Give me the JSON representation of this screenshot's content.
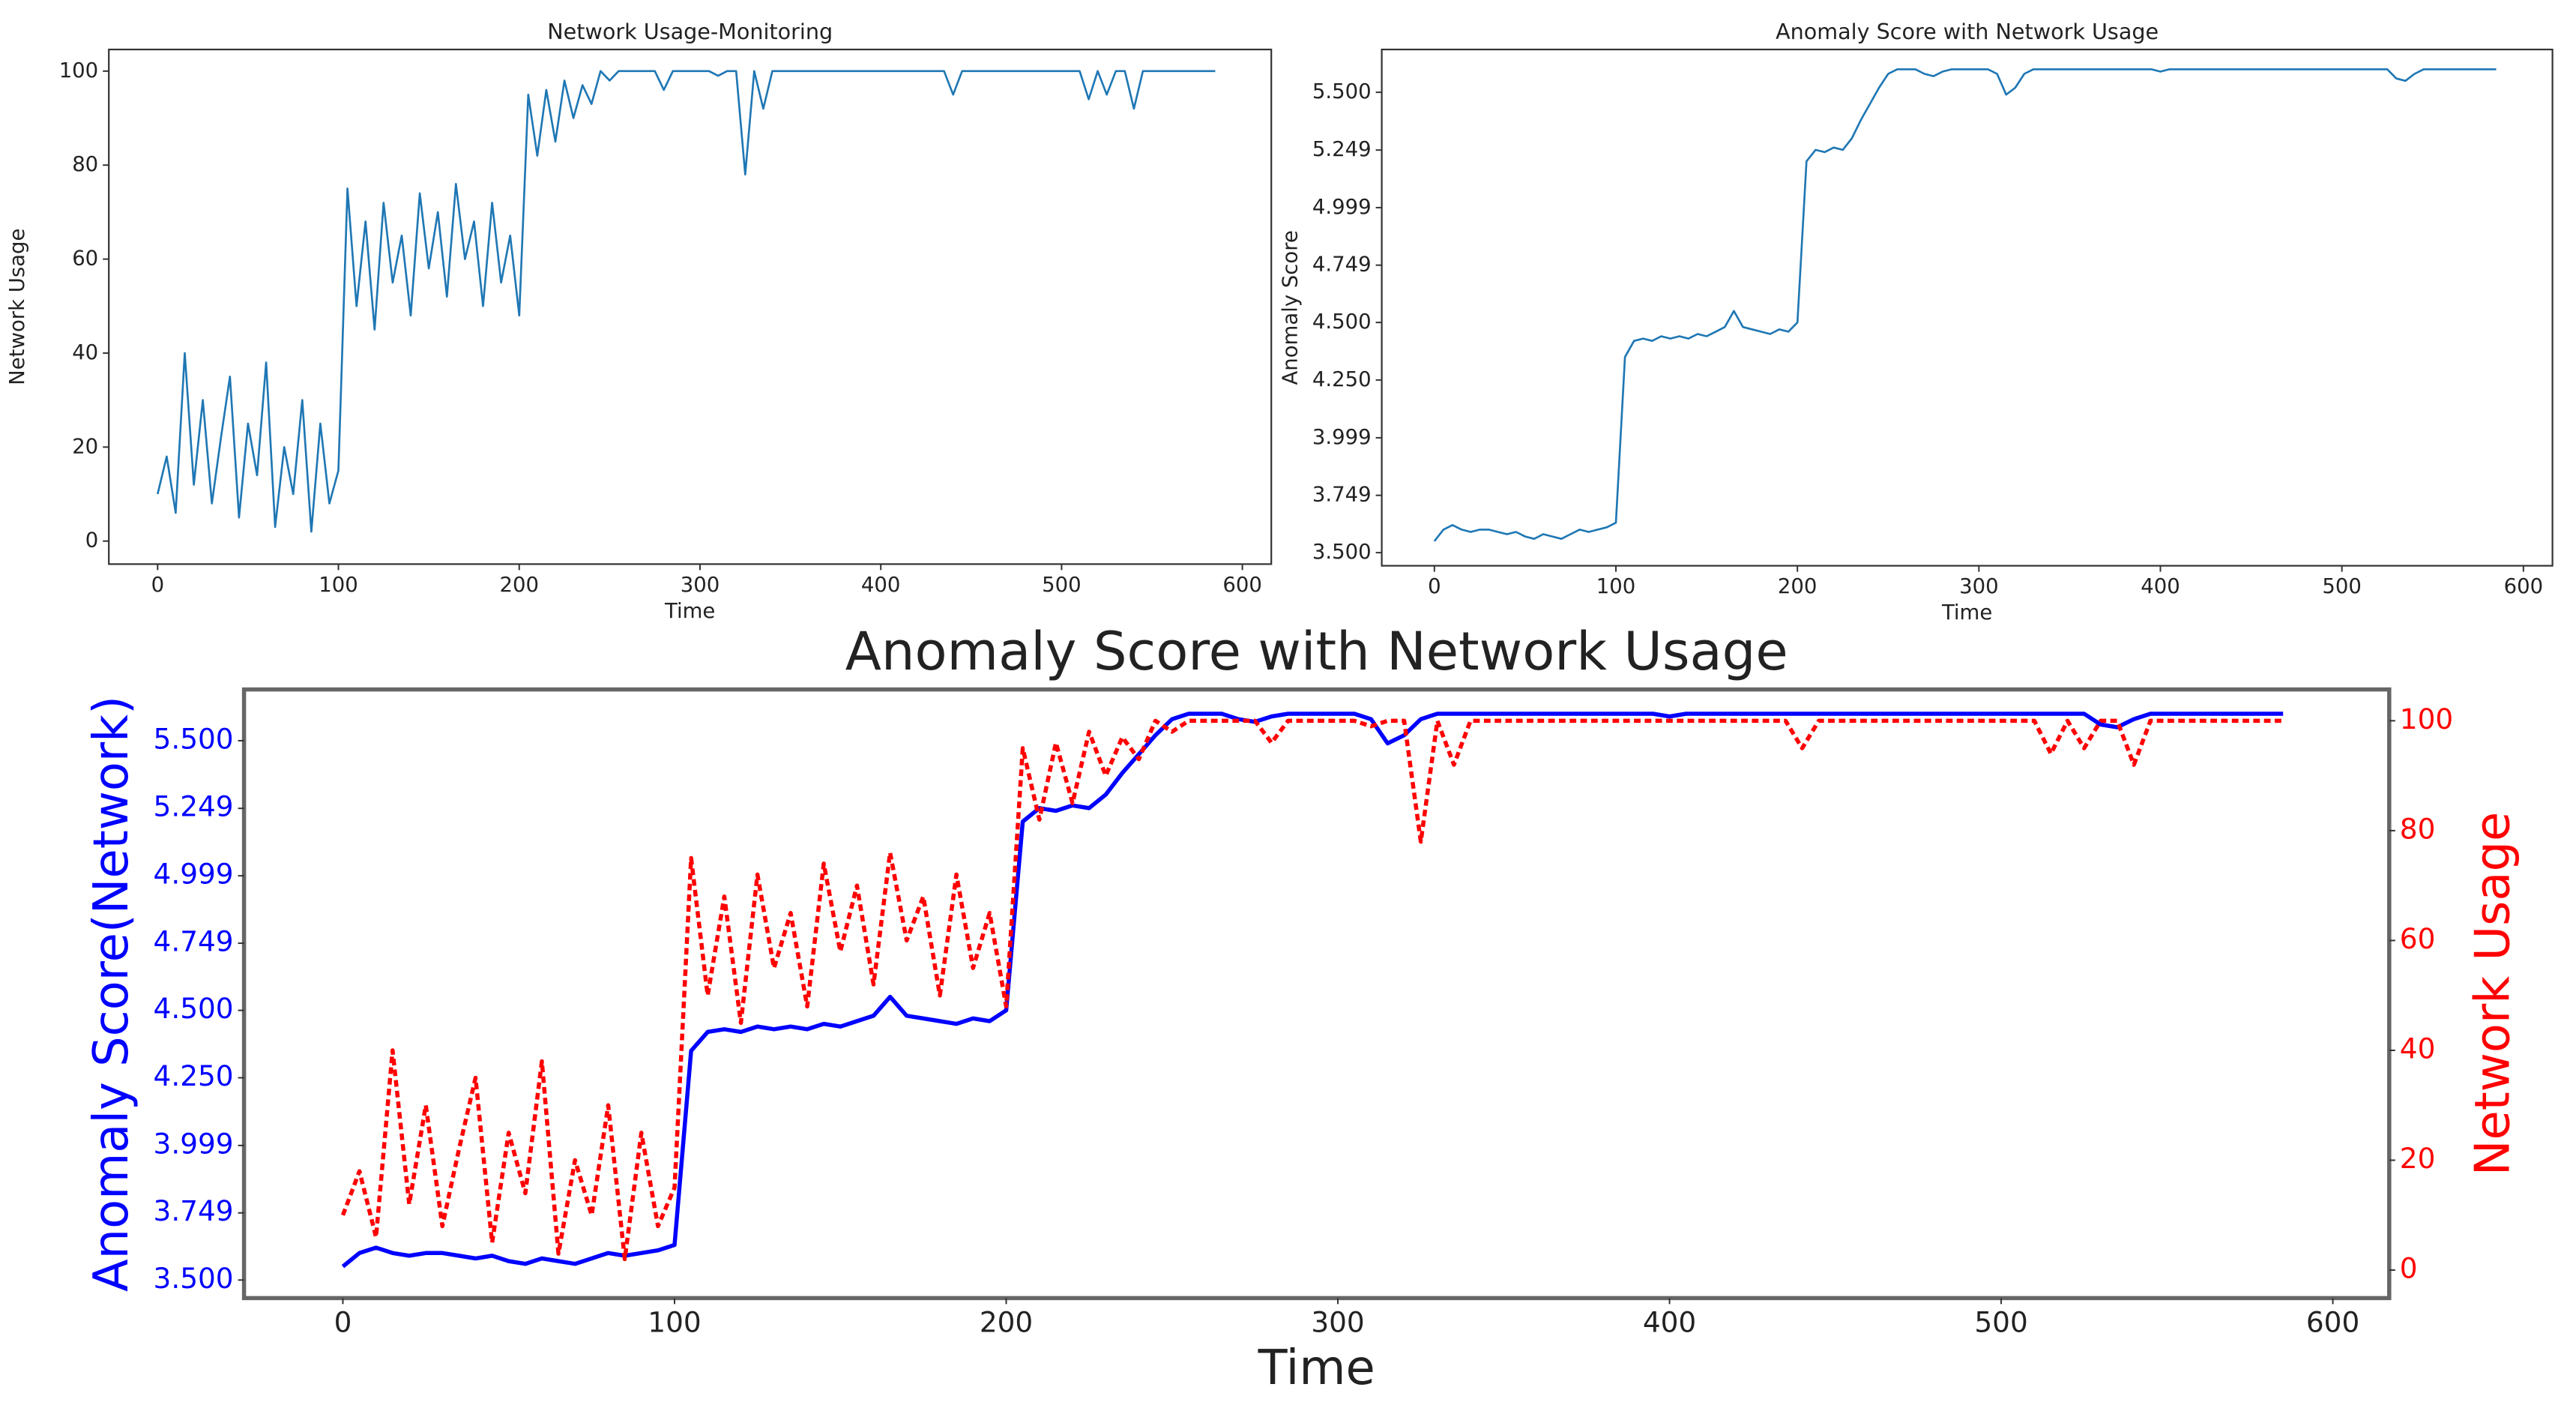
{
  "chart_data": [
    {
      "type": "line",
      "title": "Network Usage-Monitoring",
      "xlabel": "Time",
      "ylabel": "Network Usage",
      "xlim": [
        -27,
        616
      ],
      "ylim": [
        -4.9,
        104.6
      ],
      "xticks": [
        0,
        100,
        200,
        300,
        400,
        500,
        600
      ],
      "yticks": [
        0,
        20,
        40,
        60,
        80,
        100
      ],
      "x": [
        0,
        5,
        10,
        15,
        20,
        25,
        30,
        35,
        40,
        45,
        50,
        55,
        60,
        65,
        70,
        75,
        80,
        85,
        90,
        95,
        100,
        105,
        110,
        115,
        120,
        125,
        130,
        135,
        140,
        145,
        150,
        155,
        160,
        165,
        170,
        175,
        180,
        185,
        190,
        195,
        200,
        205,
        210,
        215,
        220,
        225,
        230,
        235,
        240,
        245,
        250,
        255,
        260,
        265,
        270,
        275,
        280,
        285,
        290,
        295,
        300,
        305,
        310,
        315,
        320,
        325,
        330,
        335,
        340,
        345,
        350,
        355,
        360,
        365,
        370,
        375,
        380,
        385,
        390,
        395,
        400,
        405,
        410,
        415,
        420,
        425,
        430,
        435,
        440,
        445,
        450,
        455,
        460,
        465,
        470,
        475,
        480,
        485,
        490,
        495,
        500,
        505,
        510,
        515,
        520,
        525,
        530,
        535,
        540,
        545,
        550,
        555,
        560,
        565,
        570,
        575,
        580,
        585
      ],
      "series": [
        {
          "color": "#1f77b4",
          "values": [
            10,
            18,
            6,
            40,
            12,
            30,
            8,
            22,
            35,
            5,
            25,
            14,
            38,
            3,
            20,
            10,
            30,
            2,
            25,
            8,
            15,
            75,
            50,
            68,
            45,
            72,
            55,
            65,
            48,
            74,
            58,
            70,
            52,
            76,
            60,
            68,
            50,
            72,
            55,
            65,
            48,
            95,
            82,
            96,
            85,
            98,
            90,
            97,
            93,
            100,
            98,
            100,
            100,
            100,
            100,
            100,
            96,
            100,
            100,
            100,
            100,
            100,
            99,
            100,
            100,
            78,
            100,
            92,
            100,
            100,
            100,
            100,
            100,
            100,
            100,
            100,
            100,
            100,
            100,
            100,
            100,
            100,
            100,
            100,
            100,
            100,
            100,
            100,
            95,
            100,
            100,
            100,
            100,
            100,
            100,
            100,
            100,
            100,
            100,
            100,
            100,
            100,
            100,
            94,
            100,
            95,
            100,
            100,
            92,
            100,
            100,
            100,
            100,
            100,
            100,
            100,
            100,
            100
          ]
        }
      ]
    },
    {
      "type": "line",
      "title": "Anomaly Score with Network Usage",
      "xlabel": "Time",
      "ylabel": "Anomaly Score",
      "xlim": [
        -29,
        616
      ],
      "ylim": [
        3.443,
        5.686
      ],
      "xticks": [
        0,
        100,
        200,
        300,
        400,
        500,
        600
      ],
      "yticks": [
        {
          "value": 3.5,
          "label": "3.500"
        },
        {
          "value": 3.749,
          "label": "3.749"
        },
        {
          "value": 3.999,
          "label": "3.999"
        },
        {
          "value": 4.25,
          "label": "4.250"
        },
        {
          "value": 4.5,
          "label": "4.500"
        },
        {
          "value": 4.749,
          "label": "4.749"
        },
        {
          "value": 4.999,
          "label": "4.999"
        },
        {
          "value": 5.249,
          "label": "5.249"
        },
        {
          "value": 5.5,
          "label": "5.500"
        }
      ],
      "x": [
        0,
        5,
        10,
        15,
        20,
        25,
        30,
        35,
        40,
        45,
        50,
        55,
        60,
        65,
        70,
        75,
        80,
        85,
        90,
        95,
        100,
        105,
        110,
        115,
        120,
        125,
        130,
        135,
        140,
        145,
        150,
        155,
        160,
        165,
        170,
        175,
        180,
        185,
        190,
        195,
        200,
        205,
        210,
        215,
        220,
        225,
        230,
        235,
        240,
        245,
        250,
        255,
        260,
        265,
        270,
        275,
        280,
        285,
        290,
        295,
        300,
        305,
        310,
        315,
        320,
        325,
        330,
        335,
        340,
        345,
        350,
        355,
        360,
        365,
        370,
        375,
        380,
        385,
        390,
        395,
        400,
        405,
        410,
        415,
        420,
        425,
        430,
        435,
        440,
        445,
        450,
        455,
        460,
        465,
        470,
        475,
        480,
        485,
        490,
        495,
        500,
        505,
        510,
        515,
        520,
        525,
        530,
        535,
        540,
        545,
        550,
        555,
        560,
        565,
        570,
        575,
        580,
        585
      ],
      "series": [
        {
          "color": "#1f77b4",
          "values": [
            3.55,
            3.6,
            3.62,
            3.6,
            3.59,
            3.6,
            3.6,
            3.59,
            3.58,
            3.59,
            3.57,
            3.56,
            3.58,
            3.57,
            3.56,
            3.58,
            3.6,
            3.59,
            3.6,
            3.61,
            3.63,
            4.35,
            4.42,
            4.43,
            4.42,
            4.44,
            4.43,
            4.44,
            4.43,
            4.45,
            4.44,
            4.46,
            4.48,
            4.55,
            4.48,
            4.47,
            4.46,
            4.45,
            4.47,
            4.46,
            4.5,
            5.2,
            5.25,
            5.24,
            5.26,
            5.25,
            5.3,
            5.38,
            5.45,
            5.52,
            5.58,
            5.6,
            5.6,
            5.6,
            5.58,
            5.57,
            5.59,
            5.6,
            5.6,
            5.6,
            5.6,
            5.6,
            5.58,
            5.49,
            5.52,
            5.58,
            5.6,
            5.6,
            5.6,
            5.6,
            5.6,
            5.6,
            5.6,
            5.6,
            5.6,
            5.6,
            5.6,
            5.6,
            5.6,
            5.6,
            5.59,
            5.6,
            5.6,
            5.6,
            5.6,
            5.6,
            5.6,
            5.6,
            5.6,
            5.6,
            5.6,
            5.6,
            5.6,
            5.6,
            5.6,
            5.6,
            5.6,
            5.6,
            5.6,
            5.6,
            5.6,
            5.6,
            5.6,
            5.6,
            5.6,
            5.6,
            5.56,
            5.55,
            5.58,
            5.6,
            5.6,
            5.6,
            5.6,
            5.6,
            5.6,
            5.6,
            5.6,
            5.6
          ]
        }
      ]
    },
    {
      "type": "line",
      "title": "Anomaly Score with Network Usage",
      "xlabel": "Time",
      "ylabel": "Anomaly Score(Network)",
      "y2label": "Network Usage",
      "xlim": [
        -29.8,
        617
      ],
      "ylim": [
        3.433,
        5.69
      ],
      "y2lim": [
        -5.1,
        105.7
      ],
      "xticks": [
        0,
        100,
        200,
        300,
        400,
        500,
        600
      ],
      "yticks": [
        {
          "value": 3.5,
          "label": "3.500"
        },
        {
          "value": 3.749,
          "label": "3.749"
        },
        {
          "value": 3.999,
          "label": "3.999"
        },
        {
          "value": 4.25,
          "label": "4.250"
        },
        {
          "value": 4.5,
          "label": "4.500"
        },
        {
          "value": 4.749,
          "label": "4.749"
        },
        {
          "value": 4.999,
          "label": "4.999"
        },
        {
          "value": 5.249,
          "label": "5.249"
        },
        {
          "value": 5.5,
          "label": "5.500"
        }
      ],
      "y2ticks": [
        0,
        20,
        40,
        60,
        80,
        100
      ],
      "x": [
        0,
        5,
        10,
        15,
        20,
        25,
        30,
        35,
        40,
        45,
        50,
        55,
        60,
        65,
        70,
        75,
        80,
        85,
        90,
        95,
        100,
        105,
        110,
        115,
        120,
        125,
        130,
        135,
        140,
        145,
        150,
        155,
        160,
        165,
        170,
        175,
        180,
        185,
        190,
        195,
        200,
        205,
        210,
        215,
        220,
        225,
        230,
        235,
        240,
        245,
        250,
        255,
        260,
        265,
        270,
        275,
        280,
        285,
        290,
        295,
        300,
        305,
        310,
        315,
        320,
        325,
        330,
        335,
        340,
        345,
        350,
        355,
        360,
        365,
        370,
        375,
        380,
        385,
        390,
        395,
        400,
        405,
        410,
        415,
        420,
        425,
        430,
        435,
        440,
        445,
        450,
        455,
        460,
        465,
        470,
        475,
        480,
        485,
        490,
        495,
        500,
        505,
        510,
        515,
        520,
        525,
        530,
        535,
        540,
        545,
        550,
        555,
        560,
        565,
        570,
        575,
        580,
        585
      ],
      "series": [
        {
          "color": "blue",
          "axis": "y",
          "values": [
            3.55,
            3.6,
            3.62,
            3.6,
            3.59,
            3.6,
            3.6,
            3.59,
            3.58,
            3.59,
            3.57,
            3.56,
            3.58,
            3.57,
            3.56,
            3.58,
            3.6,
            3.59,
            3.6,
            3.61,
            3.63,
            4.35,
            4.42,
            4.43,
            4.42,
            4.44,
            4.43,
            4.44,
            4.43,
            4.45,
            4.44,
            4.46,
            4.48,
            4.55,
            4.48,
            4.47,
            4.46,
            4.45,
            4.47,
            4.46,
            4.5,
            5.2,
            5.25,
            5.24,
            5.26,
            5.25,
            5.3,
            5.38,
            5.45,
            5.52,
            5.58,
            5.6,
            5.6,
            5.6,
            5.58,
            5.57,
            5.59,
            5.6,
            5.6,
            5.6,
            5.6,
            5.6,
            5.58,
            5.49,
            5.52,
            5.58,
            5.6,
            5.6,
            5.6,
            5.6,
            5.6,
            5.6,
            5.6,
            5.6,
            5.6,
            5.6,
            5.6,
            5.6,
            5.6,
            5.6,
            5.59,
            5.6,
            5.6,
            5.6,
            5.6,
            5.6,
            5.6,
            5.6,
            5.6,
            5.6,
            5.6,
            5.6,
            5.6,
            5.6,
            5.6,
            5.6,
            5.6,
            5.6,
            5.6,
            5.6,
            5.6,
            5.6,
            5.6,
            5.6,
            5.6,
            5.6,
            5.56,
            5.55,
            5.58,
            5.6,
            5.6,
            5.6,
            5.6,
            5.6,
            5.6,
            5.6,
            5.6,
            5.6
          ]
        },
        {
          "color": "red",
          "axis": "y2",
          "linestyle": "dashed",
          "values": [
            10,
            18,
            6,
            40,
            12,
            30,
            8,
            22,
            35,
            5,
            25,
            14,
            38,
            3,
            20,
            10,
            30,
            2,
            25,
            8,
            15,
            75,
            50,
            68,
            45,
            72,
            55,
            65,
            48,
            74,
            58,
            70,
            52,
            76,
            60,
            68,
            50,
            72,
            55,
            65,
            48,
            95,
            82,
            96,
            85,
            98,
            90,
            97,
            93,
            100,
            98,
            100,
            100,
            100,
            100,
            100,
            96,
            100,
            100,
            100,
            100,
            100,
            99,
            100,
            100,
            78,
            100,
            92,
            100,
            100,
            100,
            100,
            100,
            100,
            100,
            100,
            100,
            100,
            100,
            100,
            100,
            100,
            100,
            100,
            100,
            100,
            100,
            100,
            95,
            100,
            100,
            100,
            100,
            100,
            100,
            100,
            100,
            100,
            100,
            100,
            100,
            100,
            100,
            94,
            100,
            95,
            100,
            100,
            92,
            100,
            100,
            100,
            100,
            100,
            100,
            100,
            100,
            100
          ]
        }
      ]
    }
  ]
}
